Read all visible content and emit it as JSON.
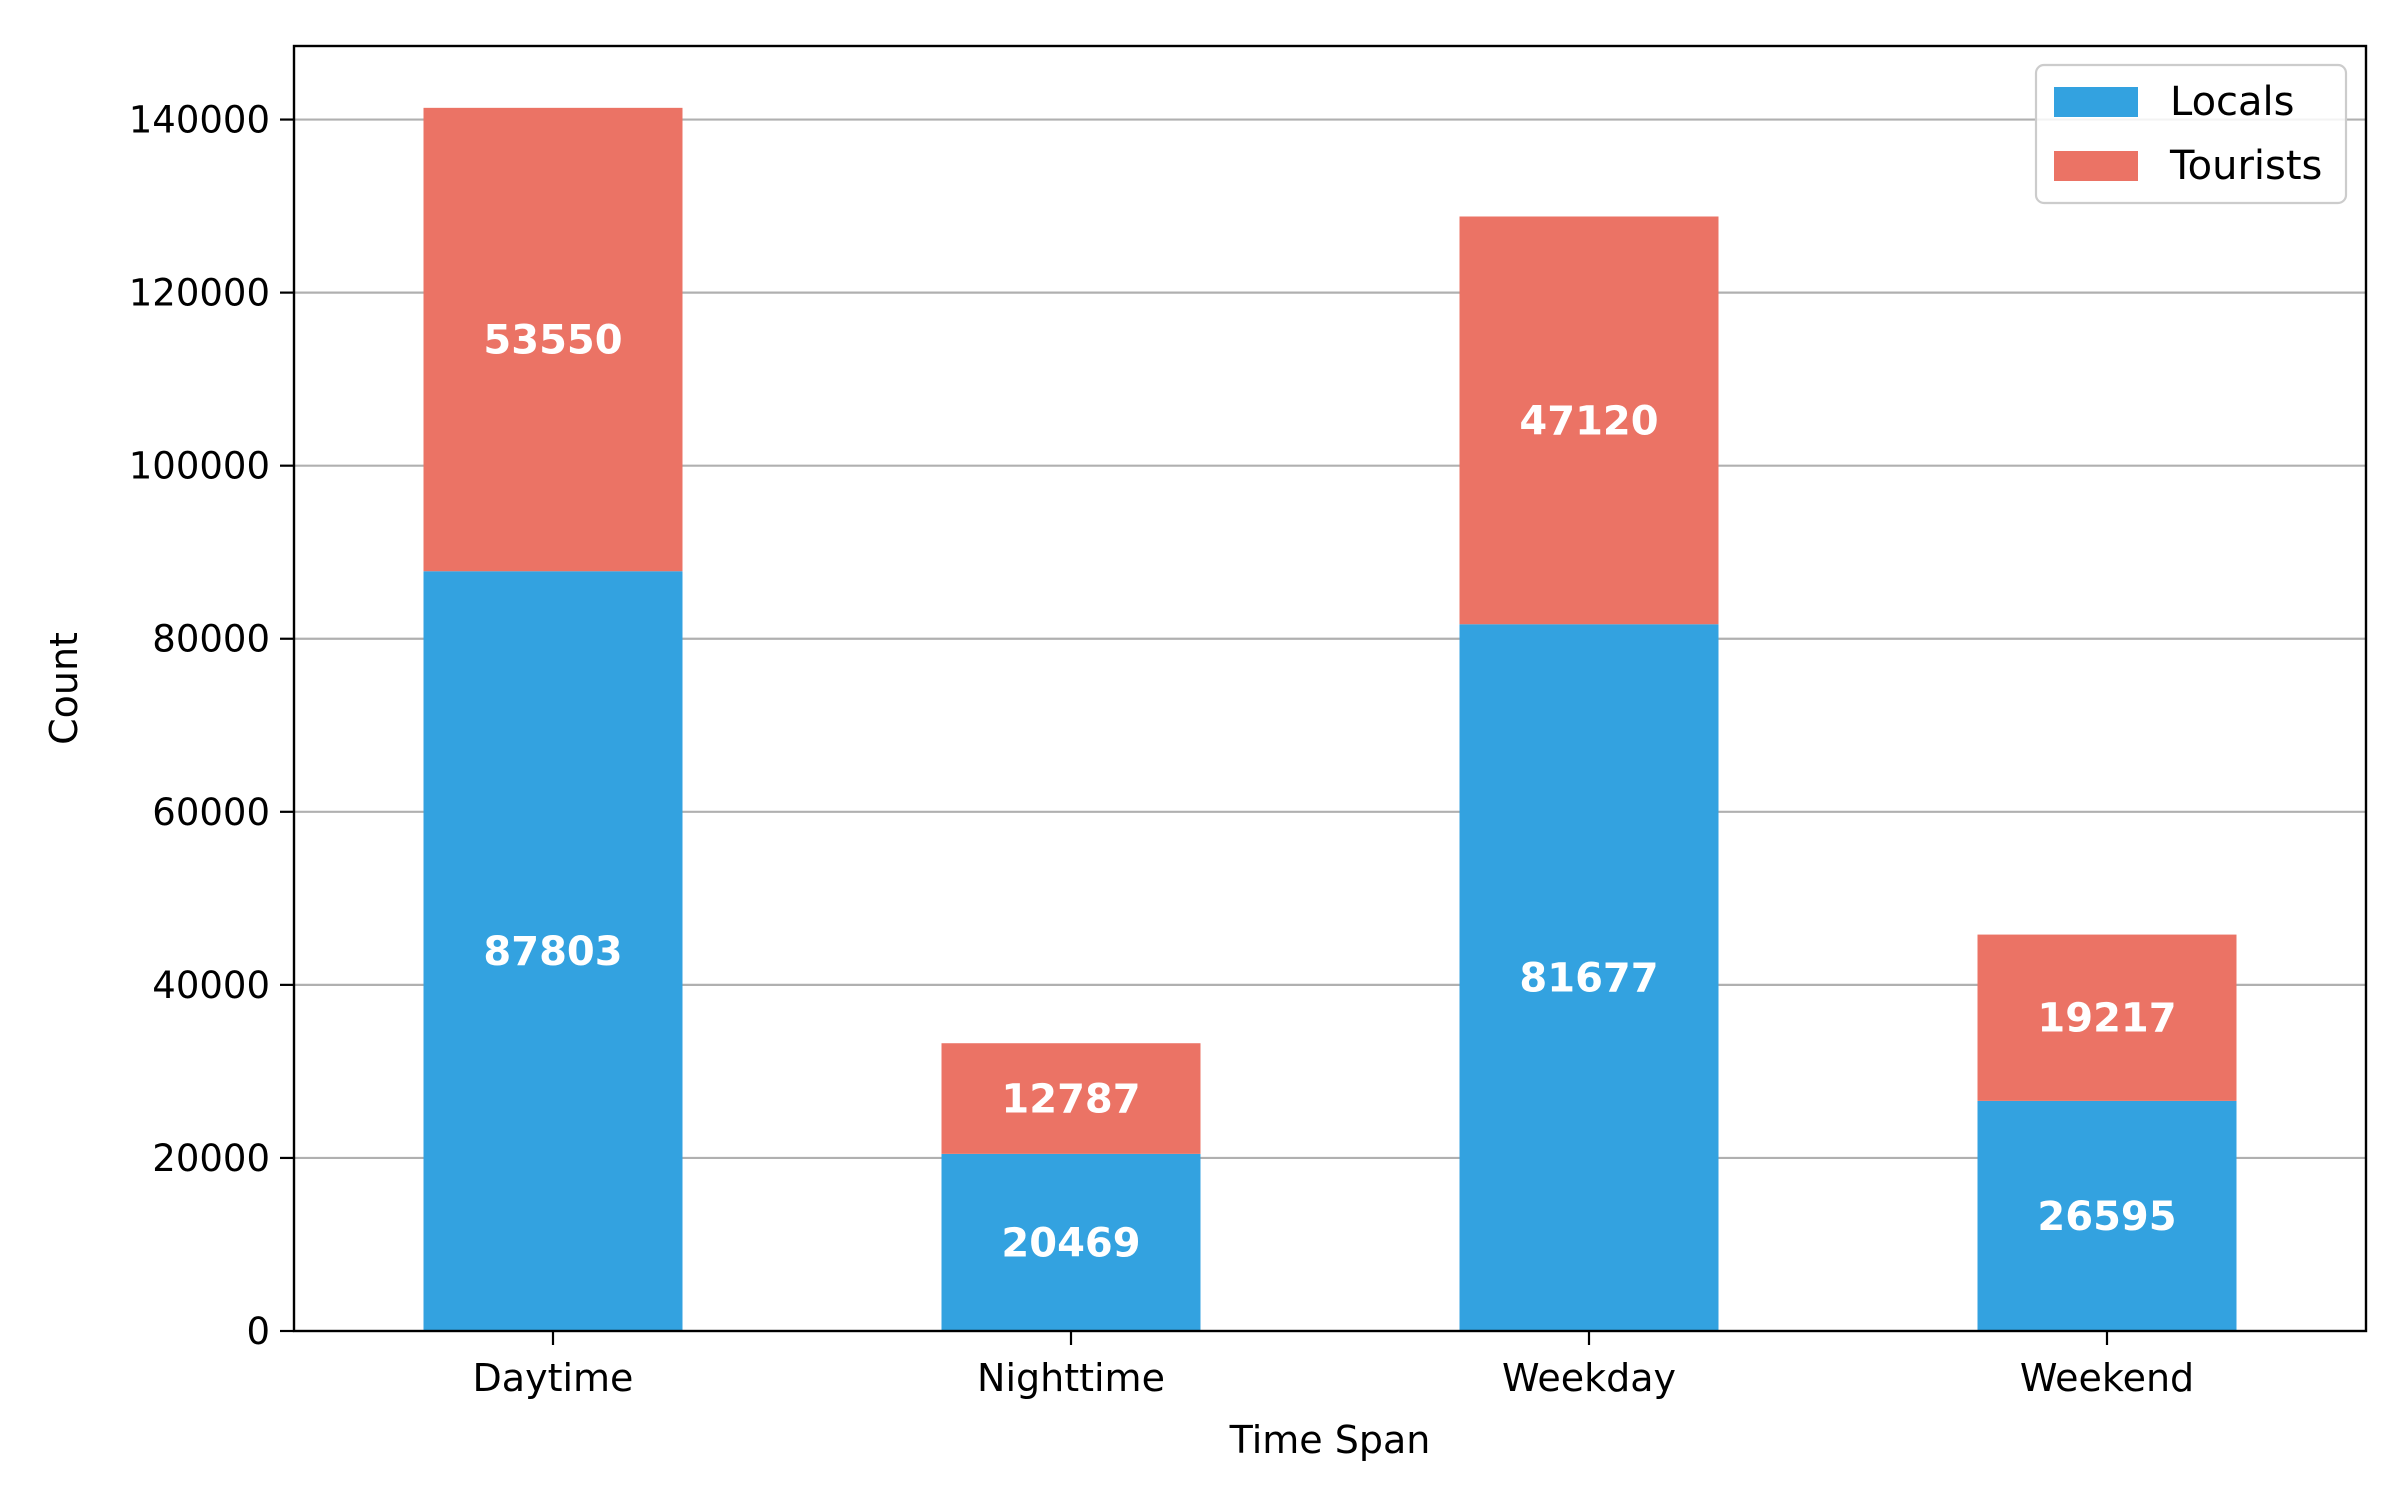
{
  "chart_data": {
    "type": "bar",
    "stacked": true,
    "categories": [
      "Daytime",
      "Nighttime",
      "Weekday",
      "Weekend"
    ],
    "series": [
      {
        "name": "Locals",
        "color": "#33a2e0",
        "values": [
          87803,
          20469,
          81677,
          26595
        ]
      },
      {
        "name": "Tourists",
        "color": "#eb7365",
        "values": [
          53550,
          12787,
          47120,
          19217
        ]
      }
    ],
    "title": "",
    "xlabel": "Time Span",
    "ylabel": "Count",
    "ylim": [
      0,
      148500
    ],
    "yticks": [
      0,
      20000,
      40000,
      60000,
      80000,
      100000,
      120000,
      140000
    ],
    "grid": "y",
    "legend_position": "top-right"
  }
}
